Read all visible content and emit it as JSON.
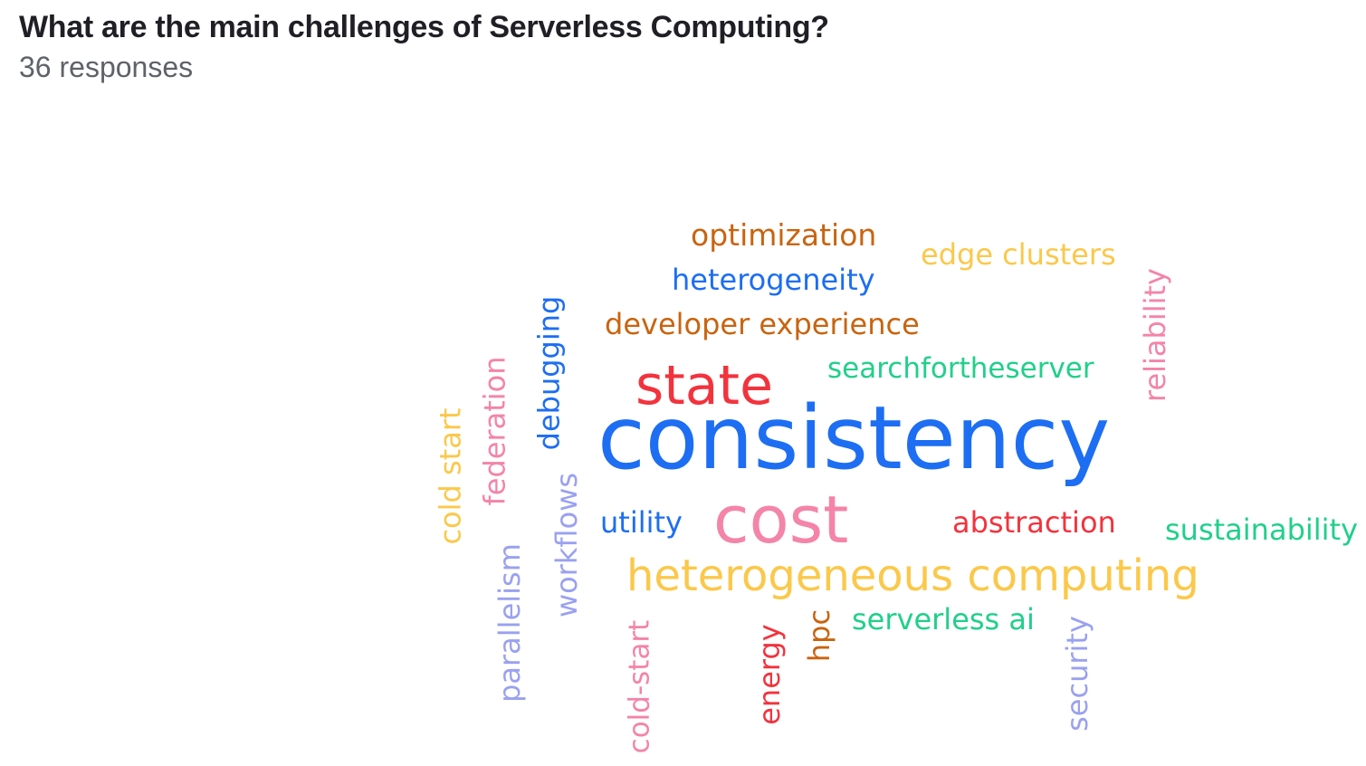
{
  "question": {
    "title": "What are the main challenges of Serverless Computing?",
    "responses": "36 responses"
  },
  "colors": {
    "blue": "#1d6ef2",
    "red": "#f2333d",
    "pink": "#f484a8",
    "yellow": "#fbc84a",
    "orange": "#c9640f",
    "green": "#20d08a",
    "lavender": "#9aa1f0"
  },
  "words": [
    {
      "text": "optimization",
      "color": "#c9640f"
    },
    {
      "text": "edge clusters",
      "color": "#fbc84a"
    },
    {
      "text": "heterogeneity",
      "color": "#1d6ef2"
    },
    {
      "text": "developer experience",
      "color": "#c9640f"
    },
    {
      "text": "reliability",
      "color": "#f484a8"
    },
    {
      "text": "debugging",
      "color": "#1d6ef2"
    },
    {
      "text": "state",
      "color": "#f2333d"
    },
    {
      "text": "searchfortheserver",
      "color": "#20d08a"
    },
    {
      "text": "federation",
      "color": "#f484a8"
    },
    {
      "text": "cold start",
      "color": "#fbc84a"
    },
    {
      "text": "consistency",
      "color": "#1d6ef2"
    },
    {
      "text": "workflows",
      "color": "#9aa1f0"
    },
    {
      "text": "utility",
      "color": "#1d6ef2"
    },
    {
      "text": "cost",
      "color": "#f484a8"
    },
    {
      "text": "abstraction",
      "color": "#f2333d"
    },
    {
      "text": "sustainability",
      "color": "#20d08a"
    },
    {
      "text": "heterogeneous computing",
      "color": "#fbc84a"
    },
    {
      "text": "parallelism",
      "color": "#9aa1f0"
    },
    {
      "text": "hpc",
      "color": "#c9640f"
    },
    {
      "text": "serverless ai",
      "color": "#20d08a"
    },
    {
      "text": "cold-start",
      "color": "#f484a8"
    },
    {
      "text": "energy",
      "color": "#f2333d"
    },
    {
      "text": "security",
      "color": "#9aa1f0"
    }
  ]
}
